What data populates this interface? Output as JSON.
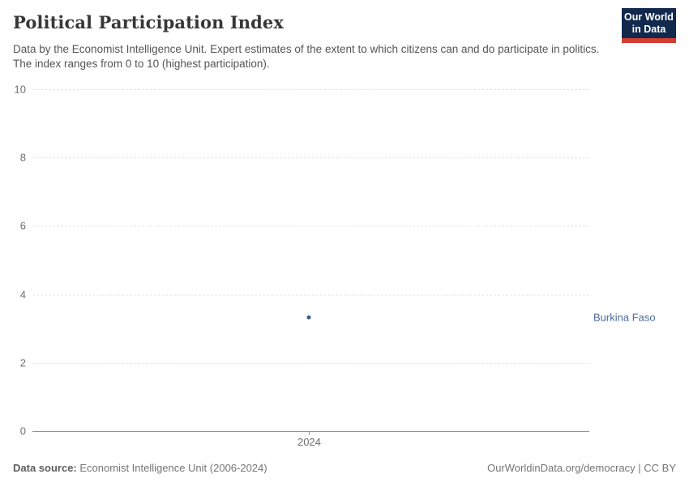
{
  "header": {
    "title": "Political Participation Index",
    "subtitle": "Data by the Economist Intelligence Unit. Expert estimates of the extent to which citizens can and do participate in politics. The index ranges from 0 to 10 (highest participation).",
    "logo": {
      "line1": "Our World",
      "line2": "in Data"
    }
  },
  "chart_data": {
    "type": "scatter",
    "title": "Political Participation Index",
    "xlabel": "",
    "ylabel": "",
    "ylim": [
      0,
      10
    ],
    "yticks": [
      0,
      2,
      4,
      6,
      8,
      10
    ],
    "xticks": [
      "2024"
    ],
    "x_position_fraction": 0.497,
    "grid": "horizontal-dashed",
    "legend_position": "right-of-point",
    "series": [
      {
        "name": "Burkina Faso",
        "x": [
          2024
        ],
        "values": [
          3.33
        ],
        "color": "#3d5c8f",
        "label_color": "#4c6a9c"
      }
    ]
  },
  "footer": {
    "source_label": "Data source:",
    "source_value": " Economist Intelligence Unit (2006-2024)",
    "site_url": "OurWorldinData.org/democracy",
    "separator": " | ",
    "license": "CC BY"
  },
  "colors": {
    "logo_navy": "#12294d",
    "logo_red": "#d13f33",
    "entity_blue": "#4c6a9c",
    "gridline": "#e2e2e2",
    "axis_line": "#8f8f8f"
  }
}
